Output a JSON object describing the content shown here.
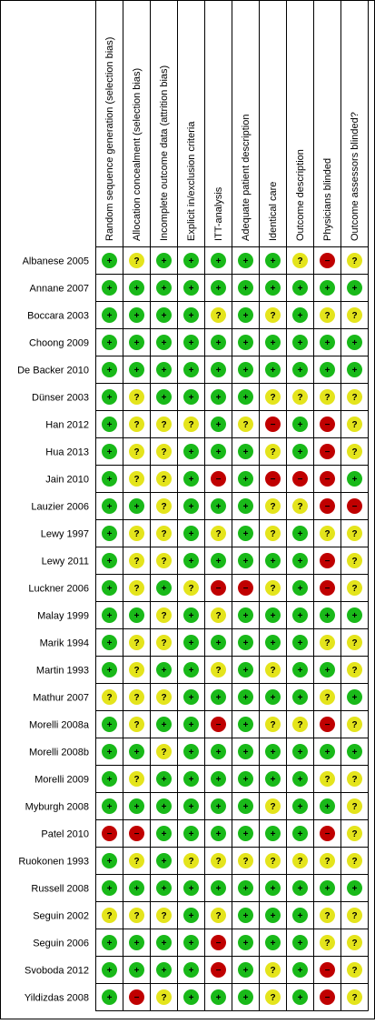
{
  "table": {
    "columns": [
      "Random sequence generation (selection bias)",
      "Allocation concealment (selection bias)",
      "Incomplete outcome data (attrition bias)",
      "Explicit in/exclusion criteria",
      "ITT-analysis",
      "Adequate patient description",
      "Identical care",
      "Outcome description",
      "Physicians blinded",
      "Outcome assessors blinded?"
    ],
    "colors": {
      "+": "#19b919",
      "?": "#e4e41c",
      "−": "#c00000"
    },
    "rows": [
      {
        "study": "Albanese 2005",
        "judgments": [
          "+",
          "?",
          "+",
          "+",
          "+",
          "+",
          "+",
          "?",
          "−",
          "?"
        ]
      },
      {
        "study": "Annane 2007",
        "judgments": [
          "+",
          "+",
          "+",
          "+",
          "+",
          "+",
          "+",
          "+",
          "+",
          "+"
        ]
      },
      {
        "study": "Boccara 2003",
        "judgments": [
          "+",
          "+",
          "+",
          "+",
          "?",
          "+",
          "?",
          "+",
          "?",
          "?"
        ]
      },
      {
        "study": "Choong 2009",
        "judgments": [
          "+",
          "+",
          "+",
          "+",
          "+",
          "+",
          "+",
          "+",
          "+",
          "+"
        ]
      },
      {
        "study": "De Backer 2010",
        "judgments": [
          "+",
          "+",
          "+",
          "+",
          "+",
          "+",
          "+",
          "+",
          "+",
          "+"
        ]
      },
      {
        "study": "Dünser 2003",
        "judgments": [
          "+",
          "?",
          "+",
          "+",
          "+",
          "+",
          "?",
          "?",
          "?",
          "?"
        ]
      },
      {
        "study": "Han 2012",
        "judgments": [
          "+",
          "?",
          "?",
          "?",
          "+",
          "?",
          "−",
          "+",
          "−",
          "?"
        ]
      },
      {
        "study": "Hua 2013",
        "judgments": [
          "+",
          "?",
          "?",
          "+",
          "+",
          "+",
          "?",
          "+",
          "−",
          "?"
        ]
      },
      {
        "study": "Jain 2010",
        "judgments": [
          "+",
          "?",
          "?",
          "+",
          "−",
          "+",
          "−",
          "−",
          "−",
          "+"
        ]
      },
      {
        "study": "Lauzier 2006",
        "judgments": [
          "+",
          "+",
          "?",
          "+",
          "+",
          "+",
          "?",
          "?",
          "−",
          "−"
        ]
      },
      {
        "study": "Lewy 1997",
        "judgments": [
          "+",
          "?",
          "?",
          "+",
          "?",
          "+",
          "?",
          "+",
          "?",
          "?"
        ]
      },
      {
        "study": "Lewy 2011",
        "judgments": [
          "+",
          "?",
          "?",
          "+",
          "+",
          "+",
          "+",
          "+",
          "−",
          "?"
        ]
      },
      {
        "study": "Luckner 2006",
        "judgments": [
          "+",
          "?",
          "+",
          "?",
          "−",
          "−",
          "?",
          "+",
          "−",
          "?"
        ]
      },
      {
        "study": "Malay 1999",
        "judgments": [
          "+",
          "+",
          "?",
          "+",
          "?",
          "+",
          "+",
          "+",
          "+",
          "+"
        ]
      },
      {
        "study": "Marik 1994",
        "judgments": [
          "+",
          "?",
          "?",
          "+",
          "+",
          "+",
          "+",
          "+",
          "?",
          "?"
        ]
      },
      {
        "study": "Martin 1993",
        "judgments": [
          "+",
          "?",
          "+",
          "+",
          "?",
          "+",
          "?",
          "+",
          "+",
          "?"
        ]
      },
      {
        "study": "Mathur 2007",
        "judgments": [
          "?",
          "?",
          "?",
          "+",
          "+",
          "+",
          "+",
          "+",
          "?",
          "+"
        ]
      },
      {
        "study": "Morelli 2008a",
        "judgments": [
          "+",
          "?",
          "+",
          "+",
          "−",
          "+",
          "?",
          "?",
          "−",
          "?"
        ]
      },
      {
        "study": "Morelli 2008b",
        "judgments": [
          "+",
          "+",
          "?",
          "+",
          "+",
          "+",
          "+",
          "+",
          "+",
          "+"
        ]
      },
      {
        "study": "Morelli 2009",
        "judgments": [
          "+",
          "?",
          "+",
          "+",
          "+",
          "+",
          "+",
          "+",
          "?",
          "?"
        ]
      },
      {
        "study": "Myburgh 2008",
        "judgments": [
          "+",
          "+",
          "+",
          "+",
          "+",
          "+",
          "?",
          "+",
          "+",
          "?"
        ]
      },
      {
        "study": "Patel 2010",
        "judgments": [
          "−",
          "−",
          "+",
          "+",
          "+",
          "+",
          "+",
          "+",
          "−",
          "?"
        ]
      },
      {
        "study": "Ruokonen 1993",
        "judgments": [
          "+",
          "?",
          "+",
          "?",
          "?",
          "?",
          "?",
          "?",
          "?",
          "?"
        ]
      },
      {
        "study": "Russell 2008",
        "judgments": [
          "+",
          "+",
          "+",
          "+",
          "+",
          "+",
          "+",
          "+",
          "+",
          "+"
        ]
      },
      {
        "study": "Seguin 2002",
        "judgments": [
          "?",
          "?",
          "?",
          "+",
          "?",
          "+",
          "+",
          "+",
          "?",
          "?"
        ]
      },
      {
        "study": "Seguin 2006",
        "judgments": [
          "+",
          "+",
          "+",
          "+",
          "−",
          "+",
          "+",
          "+",
          "?",
          "?"
        ]
      },
      {
        "study": "Svoboda 2012",
        "judgments": [
          "+",
          "+",
          "+",
          "+",
          "−",
          "+",
          "?",
          "+",
          "−",
          "?"
        ]
      },
      {
        "study": "Yildizdas 2008",
        "judgments": [
          "+",
          "−",
          "?",
          "+",
          "+",
          "+",
          "?",
          "+",
          "−",
          "?"
        ]
      }
    ]
  }
}
